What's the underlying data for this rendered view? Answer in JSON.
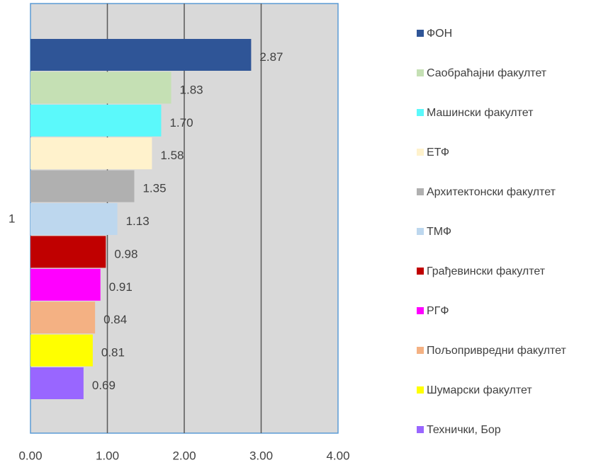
{
  "chart_data": {
    "type": "bar",
    "orientation": "horizontal",
    "categories": [
      "1"
    ],
    "series": [
      {
        "name": "ФОН",
        "color": "#2f5597",
        "values": [
          2.87
        ],
        "value_labels": [
          "2.87"
        ]
      },
      {
        "name": "Саобраћајни факултет",
        "color": "#c5e0b4",
        "values": [
          1.83
        ],
        "value_labels": [
          "1.83"
        ]
      },
      {
        "name": "Машински факултет",
        "color": "#5bf9fb",
        "values": [
          1.7
        ],
        "value_labels": [
          "1.70"
        ]
      },
      {
        "name": "ЕТФ",
        "color": "#fff2cc",
        "values": [
          1.58
        ],
        "value_labels": [
          "1.58"
        ]
      },
      {
        "name": "Архитектонски факултет",
        "color": "#b0b0b0",
        "values": [
          1.35
        ],
        "value_labels": [
          "1.35"
        ]
      },
      {
        "name": "ТМФ",
        "color": "#bdd7ee",
        "values": [
          1.13
        ],
        "value_labels": [
          "1.13"
        ]
      },
      {
        "name": "Грађевински факултет",
        "color": "#c00000",
        "values": [
          0.98
        ],
        "value_labels": [
          "0.98"
        ]
      },
      {
        "name": "РГФ",
        "color": "#ff00ff",
        "values": [
          0.91
        ],
        "value_labels": [
          "0.91"
        ]
      },
      {
        "name": "Пољопривредни факултет",
        "color": "#f4b183",
        "values": [
          0.84
        ],
        "value_labels": [
          "0.84"
        ]
      },
      {
        "name": "Шумарски факултет",
        "color": "#ffff00",
        "values": [
          0.81
        ],
        "value_labels": [
          "0.81"
        ]
      },
      {
        "name": "Технички, Бор",
        "color": "#9966ff",
        "values": [
          0.69
        ],
        "value_labels": [
          "0.69"
        ]
      }
    ],
    "xlim": [
      0,
      4
    ],
    "xticks": [
      {
        "value": 0,
        "label": "0.00"
      },
      {
        "value": 1,
        "label": "1.00"
      },
      {
        "value": 2,
        "label": "2.00"
      },
      {
        "value": 3,
        "label": "3.00"
      },
      {
        "value": 4,
        "label": "4.00"
      }
    ],
    "grid": true,
    "legend": "right"
  }
}
